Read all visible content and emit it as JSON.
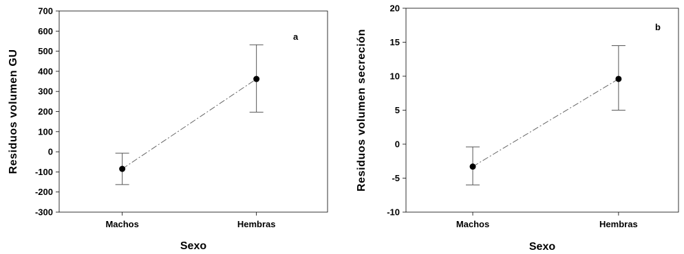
{
  "chart_data": [
    {
      "type": "line",
      "panel_label": "a",
      "categories": [
        "Machos",
        "Hembras"
      ],
      "values": [
        -85,
        362
      ],
      "error_low": [
        -163,
        197
      ],
      "error_high": [
        -7,
        532
      ],
      "xlabel": "Sexo",
      "ylabel": "Residuos volumen GU",
      "ylim": [
        -300,
        700
      ],
      "yticks": [
        700,
        600,
        500,
        400,
        300,
        200,
        100,
        0,
        -100,
        -200,
        -300
      ],
      "ytick_labels": [
        "700",
        "600",
        "500",
        "400",
        "300",
        "200",
        "100",
        "0",
        "-100",
        "-200",
        "-300"
      ],
      "grid": false,
      "line_style": "dash-dot",
      "legend": "none"
    },
    {
      "type": "line",
      "panel_label": "b",
      "categories": [
        "Machos",
        "Hembras"
      ],
      "values": [
        -3.3,
        9.6
      ],
      "error_low": [
        -6,
        5
      ],
      "error_high": [
        -0.4,
        14.5
      ],
      "xlabel": "Sexo",
      "ylabel": "Residuos volumen secreción",
      "ylim": [
        -10,
        20
      ],
      "yticks": [
        20,
        15,
        10,
        5,
        0,
        -5,
        -10
      ],
      "ytick_labels": [
        "20",
        "15",
        "10",
        "5",
        "0",
        "-5",
        "-10"
      ],
      "grid": false,
      "line_style": "dash-dot",
      "legend": "none"
    }
  ]
}
